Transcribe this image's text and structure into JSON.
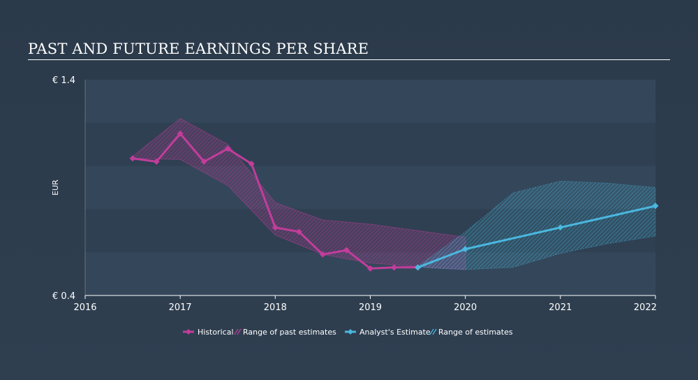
{
  "title": "PAST AND FUTURE EARNINGS PER SHARE",
  "chart_data": {
    "type": "line",
    "ylabel": "EUR",
    "y_tick_labels": [
      "€ 1.4",
      "€ 0.4"
    ],
    "ylim": [
      0.4,
      1.4
    ],
    "x_tick_labels": [
      "2016",
      "2017",
      "2018",
      "2019",
      "2020",
      "2021",
      "2022"
    ],
    "xlim": [
      2016,
      2022
    ],
    "grid": true,
    "legend_position": "bottom-center",
    "series": [
      {
        "name": "Historical",
        "color": "#c23d9b",
        "x": [
          2016.5,
          2016.75,
          2017.0,
          2017.25,
          2017.5,
          2017.75,
          2018.0,
          2018.25,
          2018.5,
          2018.75,
          2019.0,
          2019.25,
          2019.5
        ],
        "y": [
          1.035,
          1.02,
          1.15,
          1.02,
          1.08,
          1.01,
          0.715,
          0.695,
          0.59,
          0.61,
          0.525,
          0.53,
          0.53
        ]
      },
      {
        "name": "Analyst's Estimate",
        "color": "#4ab8e0",
        "x": [
          2019.5,
          2020.0,
          2021.0,
          2022.0
        ],
        "y": [
          0.53,
          0.615,
          0.715,
          0.815
        ]
      }
    ],
    "ranges": [
      {
        "name": "Range of past estimates",
        "color": "#c23d9b",
        "x": [
          2016.5,
          2017.0,
          2017.5,
          2018.0,
          2018.5,
          2019.0,
          2019.5,
          2020.0
        ],
        "high": [
          1.045,
          1.22,
          1.1,
          0.83,
          0.75,
          0.73,
          0.7,
          0.67
        ],
        "low": [
          1.035,
          1.03,
          0.91,
          0.68,
          0.59,
          0.55,
          0.535,
          0.52
        ]
      },
      {
        "name": "Range of estimates",
        "color": "#4ab8e0",
        "x": [
          2019.5,
          2020.0,
          2020.5,
          2021.0,
          2021.5,
          2022.0
        ],
        "high": [
          0.535,
          0.695,
          0.875,
          0.93,
          0.92,
          0.9
        ],
        "low": [
          0.53,
          0.52,
          0.53,
          0.595,
          0.64,
          0.675
        ]
      }
    ]
  }
}
